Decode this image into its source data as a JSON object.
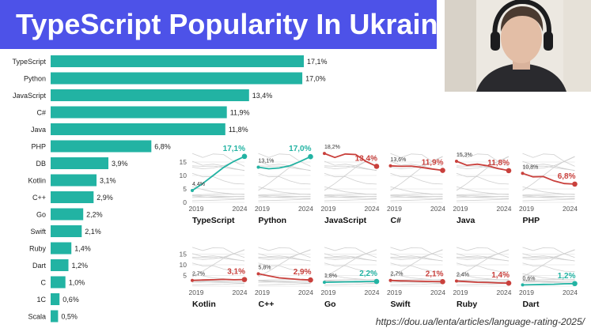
{
  "title": "TypeScript Popularity In Ukraine",
  "source": "https://dou.ua/lenta/articles/language-rating-2025/",
  "colors": {
    "bar": "#22b3a3",
    "teal": "#22b3a3",
    "red": "#c9403c",
    "banner": "#4d52e8",
    "grey": "#cfcfcf"
  },
  "chart_data": [
    {
      "type": "bar",
      "orientation": "horizontal",
      "categories": [
        "TypeScript",
        "Python",
        "JavaScript",
        "C#",
        "Java",
        "PHP",
        "DB",
        "Kotlin",
        "C++",
        "Go",
        "Swift",
        "Ruby",
        "Dart",
        "C",
        "1C",
        "Scala"
      ],
      "values": [
        17.1,
        17.0,
        13.4,
        11.9,
        11.8,
        6.8,
        3.9,
        3.1,
        2.9,
        2.2,
        2.1,
        1.4,
        1.2,
        1.0,
        0.6,
        0.5
      ],
      "value_labels": [
        "17,1%",
        "17,0%",
        "13,4%",
        "11,9%",
        "11,8%",
        "6,8%",
        "3,9%",
        "3,1%",
        "2,9%",
        "2,2%",
        "2,1%",
        "1,4%",
        "1,2%",
        "1,0%",
        "0,6%",
        "0,5%"
      ]
    },
    {
      "type": "line",
      "layout": "small-multiples",
      "x_range": [
        2019,
        2024
      ],
      "x_ticks": [
        "2019",
        "2024"
      ],
      "y_range": [
        0,
        20
      ],
      "y_ticks": [
        "0",
        "5",
        "10",
        "15"
      ],
      "panels": [
        {
          "name": "TypeScript",
          "color": "teal",
          "start": 4.4,
          "end": 17.1,
          "start_label": "4,4%",
          "end_label": "17,1%",
          "path": [
            4.4,
            7,
            10,
            13,
            15.3,
            17.1
          ]
        },
        {
          "name": "Python",
          "color": "teal",
          "start": 13.1,
          "end": 17.0,
          "start_label": "13,1%",
          "end_label": "17,0%",
          "path": [
            13.1,
            12.5,
            12.8,
            13.6,
            15.2,
            17.0
          ]
        },
        {
          "name": "JavaScript",
          "color": "red",
          "start": 18.2,
          "end": 13.4,
          "start_label": "18,2%",
          "end_label": "13,4%",
          "path": [
            18.2,
            16.7,
            18.0,
            17.8,
            15.2,
            13.4
          ]
        },
        {
          "name": "C#",
          "color": "red",
          "start": 13.6,
          "end": 11.9,
          "start_label": "13,6%",
          "end_label": "11,9%",
          "path": [
            13.6,
            13.4,
            13.5,
            13.0,
            12.4,
            11.9
          ]
        },
        {
          "name": "Java",
          "color": "red",
          "start": 15.3,
          "end": 11.8,
          "start_label": "15,3%",
          "end_label": "11,8%",
          "path": [
            15.3,
            13.8,
            14.2,
            13.6,
            12.6,
            11.8
          ]
        },
        {
          "name": "PHP",
          "color": "red",
          "start": 10.8,
          "end": 6.8,
          "start_label": "10,8%",
          "end_label": "6,8%",
          "path": [
            10.8,
            9.5,
            9.6,
            8.0,
            7.0,
            6.8
          ]
        },
        {
          "name": "Kotlin",
          "color": "red",
          "start": 2.7,
          "end": 3.1,
          "start_label": "2,7%",
          "end_label": "3,1%",
          "path": [
            2.7,
            2.9,
            3.0,
            3.2,
            3.0,
            3.1
          ]
        },
        {
          "name": "C++",
          "color": "red",
          "start": 5.8,
          "end": 2.9,
          "start_label": "5,8%",
          "end_label": "2,9%",
          "path": [
            5.8,
            4.8,
            3.9,
            3.5,
            3.1,
            2.9
          ]
        },
        {
          "name": "Go",
          "color": "teal",
          "start": 1.8,
          "end": 2.2,
          "start_label": "1,8%",
          "end_label": "2,2%",
          "path": [
            1.8,
            1.9,
            2.0,
            2.1,
            2.2,
            2.2
          ]
        },
        {
          "name": "Swift",
          "color": "red",
          "start": 2.7,
          "end": 2.1,
          "start_label": "2,7%",
          "end_label": "2,1%",
          "path": [
            2.7,
            2.5,
            2.4,
            2.3,
            2.2,
            2.1
          ]
        },
        {
          "name": "Ruby",
          "color": "red",
          "start": 2.4,
          "end": 1.4,
          "start_label": "2,4%",
          "end_label": "1,4%",
          "path": [
            2.4,
            2.1,
            1.8,
            1.7,
            1.5,
            1.4
          ]
        },
        {
          "name": "Dart",
          "color": "teal",
          "start": 0.6,
          "end": 1.2,
          "start_label": "0,6%",
          "end_label": "1,2%",
          "path": [
            0.6,
            0.7,
            0.8,
            0.9,
            1.1,
            1.2
          ]
        }
      ]
    }
  ]
}
